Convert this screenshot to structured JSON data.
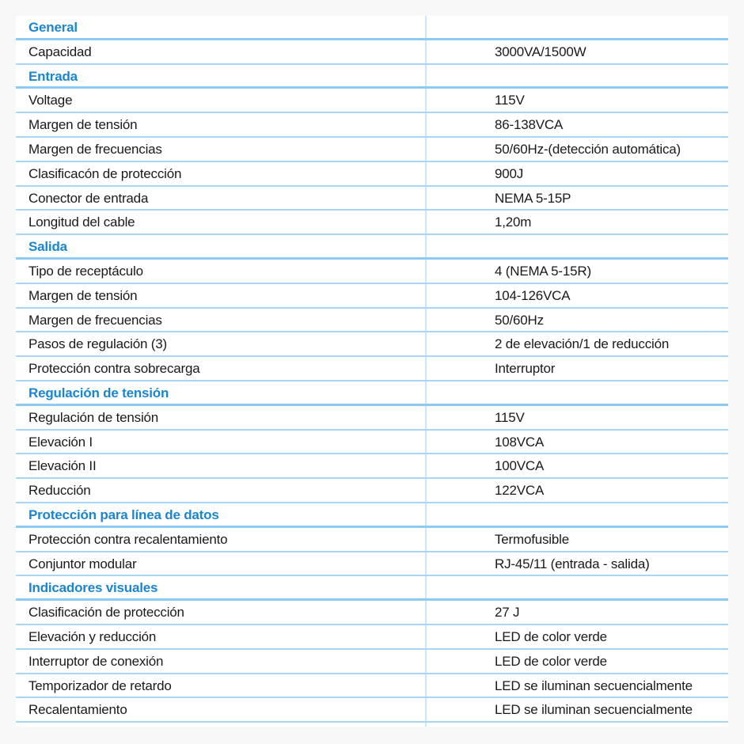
{
  "colors": {
    "section_heading": "#1a86d0",
    "rule": "#a9d6f5",
    "background": "#f8f8f8"
  },
  "rows": [
    {
      "type": "section",
      "label": "General"
    },
    {
      "label": "Capacidad",
      "value": "3000VA/1500W"
    },
    {
      "type": "section",
      "label": "Entrada"
    },
    {
      "label": "Voltage",
      "value": "115V"
    },
    {
      "label": "Margen de tensión",
      "value": "86-138VCA"
    },
    {
      "label": "Margen de frecuencias",
      "value": "50/60Hz-(detección automática)"
    },
    {
      "label": "Clasificacón de protección",
      "value": "900J"
    },
    {
      "label": "Conector de entrada",
      "value": "NEMA 5-15P"
    },
    {
      "label": "Longitud del cable",
      "value": "1,20m"
    },
    {
      "type": "section",
      "label": "Salida"
    },
    {
      "label": "Tipo de receptáculo",
      "value": "4 (NEMA 5-15R)"
    },
    {
      "label": "Margen de tensión",
      "value": "104-126VCA"
    },
    {
      "label": "Margen de frecuencias",
      "value": "50/60Hz"
    },
    {
      "label": "Pasos de regulación (3)",
      "value": "2 de elevación/1 de reducción"
    },
    {
      "label": "Protección contra sobrecarga",
      "value": "Interruptor"
    },
    {
      "type": "section",
      "label": "Regulación de tensión"
    },
    {
      "label": "Regulación de tensión",
      "value": "115V"
    },
    {
      "label": "Elevación I",
      "value": "108VCA"
    },
    {
      "label": "Elevación II",
      "value": "100VCA"
    },
    {
      "label": "Reducción",
      "value": "122VCA"
    },
    {
      "type": "section",
      "label": "Protección para línea de datos"
    },
    {
      "label": "Protección contra recalentamiento",
      "value": "Termofusible"
    },
    {
      "label": "Conjuntor modular",
      "value": "RJ-45/11 (entrada - salida)"
    },
    {
      "type": "section",
      "label": "Indicadores visuales"
    },
    {
      "label": "Clasificación de protección",
      "value": "27 J"
    },
    {
      "label": "Elevación y reducción",
      "value": "LED de color verde"
    },
    {
      "label": "Interruptor de conexión",
      "value": "LED de color verde"
    },
    {
      "label": "Temporizador de retardo",
      "value": "LED se iluminan secuencialmente"
    },
    {
      "label": "Recalentamiento",
      "value": "LED se iluminan secuencialmente"
    }
  ]
}
